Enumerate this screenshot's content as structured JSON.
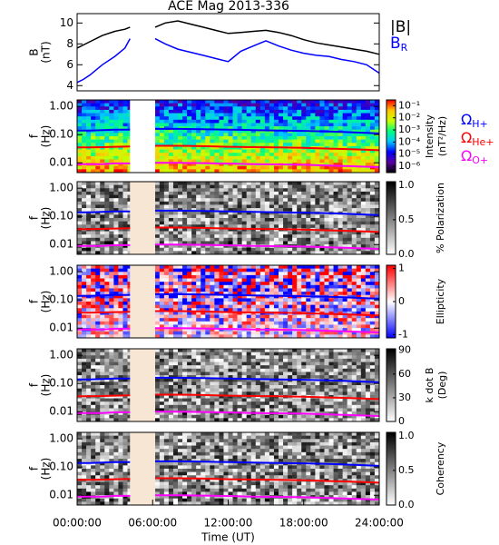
{
  "chart_data": [
    {
      "type": "line",
      "title": "ACE Mag 2013-336",
      "ylabel": [
        "B",
        "(nT)"
      ],
      "xlim": [
        0,
        24
      ],
      "ylim": [
        3.5,
        10.9
      ],
      "yticks": [
        4,
        6,
        8,
        10
      ],
      "x": [
        0,
        0.5,
        1,
        2,
        3,
        3.8,
        4.2,
        5,
        6.2,
        7,
        8,
        9,
        10,
        11,
        12,
        13,
        14,
        15,
        16,
        17,
        18,
        19,
        20,
        21,
        22,
        23,
        24
      ],
      "series": [
        {
          "name": "|B|",
          "color": "#000000",
          "values": [
            7.6,
            7.9,
            8.2,
            8.8,
            9.2,
            9.4,
            9.6,
            null,
            9.6,
            10.0,
            10.2,
            9.9,
            9.6,
            9.3,
            9.0,
            9.1,
            9.2,
            9.3,
            9.1,
            8.8,
            8.4,
            8.1,
            7.9,
            7.7,
            7.5,
            7.3,
            7.0
          ]
        },
        {
          "name": "B",
          "name_sub": "R",
          "color": "#0000ff",
          "values": [
            4.3,
            4.6,
            5.0,
            6.0,
            6.8,
            7.6,
            8.5,
            null,
            8.5,
            8.0,
            7.5,
            7.2,
            6.9,
            6.6,
            6.3,
            7.3,
            7.8,
            8.3,
            7.8,
            7.4,
            7.1,
            6.9,
            6.8,
            6.5,
            6.3,
            6.0,
            5.2
          ]
        }
      ]
    },
    {
      "type": "spectrogram",
      "ylabel": [
        "f",
        "(Hz)"
      ],
      "xlim": [
        0,
        24
      ],
      "ylim": [
        0.0045,
        1.7
      ],
      "yscale": "log",
      "yticks": [
        {
          "value": 1,
          "label": "1.00"
        },
        {
          "value": 0.1,
          "label": "0.10"
        },
        {
          "value": 0.01,
          "label": "0.01"
        }
      ],
      "gap": [
        4.2,
        6.2
      ],
      "gap_color": "#ffffff",
      "colorbar": {
        "label": [
          "Intensity",
          "(nT²/Hz)"
        ],
        "scale": "log",
        "lim": [
          3e-07,
          0.3
        ],
        "ticks": [
          {
            "value": 0.1,
            "label": "10⁻¹"
          },
          {
            "value": 0.01,
            "label": "10⁻²"
          },
          {
            "value": 0.001,
            "label": "10⁻³"
          },
          {
            "value": 0.0001,
            "label": "10⁻⁴"
          },
          {
            "value": 1e-05,
            "label": "10⁻⁵"
          },
          {
            "value": 1e-06,
            "label": "10⁻⁶"
          }
        ],
        "colors": [
          "#000000",
          "#5a00a0",
          "#0000ff",
          "#00c8ff",
          "#00ff80",
          "#c8ff00",
          "#ffc800",
          "#ff0000"
        ]
      },
      "x": [
        0,
        1,
        2,
        3,
        4.2,
        5,
        6.2,
        8,
        10,
        12,
        14,
        16,
        18,
        20,
        22,
        24
      ],
      "series": [
        {
          "name": "Ω",
          "name_sub": "H+",
          "color": "#0000ff",
          "values": [
            0.14,
            0.14,
            0.145,
            0.15,
            0.15,
            null,
            0.16,
            0.16,
            0.155,
            0.15,
            0.145,
            0.14,
            0.135,
            0.13,
            0.12,
            0.11
          ]
        },
        {
          "name": "Ω",
          "name_sub": "He+",
          "color": "#ff0000",
          "values": [
            0.035,
            0.035,
            0.036,
            0.037,
            0.038,
            null,
            0.04,
            0.04,
            0.039,
            0.037,
            0.036,
            0.035,
            0.034,
            0.032,
            0.03,
            0.028
          ]
        },
        {
          "name": "Ω",
          "name_sub": "O+",
          "color": "#ff00ff",
          "values": [
            0.009,
            0.009,
            0.009,
            0.0095,
            0.0095,
            null,
            0.01,
            0.01,
            0.0097,
            0.0094,
            0.009,
            0.0088,
            0.0085,
            0.008,
            0.0075,
            0.007
          ]
        }
      ]
    },
    {
      "type": "spectrogram",
      "ylabel": [
        "f",
        "(Hz)"
      ],
      "xlim": [
        0,
        24
      ],
      "ylim": [
        0.0045,
        1.7
      ],
      "yscale": "log",
      "yticks": [
        {
          "value": 1,
          "label": "1.00"
        },
        {
          "value": 0.1,
          "label": "0.10"
        },
        {
          "value": 0.01,
          "label": "0.01"
        }
      ],
      "gap": [
        4.2,
        6.2
      ],
      "gap_color": "#f8e6d4",
      "colorbar": {
        "label": [
          "% Polarization"
        ],
        "scale": "linear",
        "lim": [
          0,
          1.05
        ],
        "ticks": [
          {
            "value": 1,
            "label": "1.0"
          },
          0.5,
          {
            "value": 0,
            "label": "0.0"
          }
        ],
        "colors": [
          "#ffffff",
          "#000000"
        ]
      },
      "x": [
        0,
        1,
        2,
        3,
        4.2,
        5,
        6.2,
        8,
        10,
        12,
        14,
        16,
        18,
        20,
        22,
        24
      ],
      "series": [
        {
          "color": "#0000ff",
          "values": [
            0.14,
            0.14,
            0.145,
            0.15,
            0.15,
            null,
            0.16,
            0.16,
            0.155,
            0.15,
            0.145,
            0.14,
            0.135,
            0.13,
            0.12,
            0.11
          ]
        },
        {
          "color": "#ff0000",
          "values": [
            0.035,
            0.035,
            0.036,
            0.037,
            0.038,
            null,
            0.04,
            0.04,
            0.039,
            0.037,
            0.036,
            0.035,
            0.034,
            0.032,
            0.03,
            0.028
          ]
        },
        {
          "color": "#ff00ff",
          "values": [
            0.009,
            0.009,
            0.009,
            0.0095,
            0.0095,
            null,
            0.01,
            0.01,
            0.0097,
            0.0094,
            0.009,
            0.0088,
            0.0085,
            0.008,
            0.0075,
            0.007
          ]
        }
      ]
    },
    {
      "type": "spectrogram",
      "ylabel": [
        "f",
        "(Hz)"
      ],
      "xlim": [
        0,
        24
      ],
      "ylim": [
        0.0045,
        1.7
      ],
      "yscale": "log",
      "yticks": [
        {
          "value": 1,
          "label": "1.00"
        },
        {
          "value": 0.1,
          "label": "0.10"
        },
        {
          "value": 0.01,
          "label": "0.01"
        }
      ],
      "gap": [
        4.2,
        6.2
      ],
      "gap_color": "#f8e6d4",
      "colorbar": {
        "label": [
          "Ellipticity"
        ],
        "scale": "linear",
        "lim": [
          -1.1,
          1.1
        ],
        "ticks": [
          1,
          0,
          -1
        ],
        "colors": [
          "#0000ff",
          "#ffffff",
          "#ff0000"
        ]
      },
      "x": [
        0,
        1,
        2,
        3,
        4.2,
        5,
        6.2,
        8,
        10,
        12,
        14,
        16,
        18,
        20,
        22,
        24
      ],
      "series": [
        {
          "color": "#0000ff",
          "values": [
            0.14,
            0.14,
            0.145,
            0.15,
            0.15,
            null,
            0.16,
            0.16,
            0.155,
            0.15,
            0.145,
            0.14,
            0.135,
            0.13,
            0.12,
            0.11
          ]
        },
        {
          "color": "#ff0000",
          "values": [
            0.035,
            0.035,
            0.036,
            0.037,
            0.038,
            null,
            0.04,
            0.04,
            0.039,
            0.037,
            0.036,
            0.035,
            0.034,
            0.032,
            0.03,
            0.028
          ]
        },
        {
          "color": "#ff00ff",
          "values": [
            0.009,
            0.009,
            0.009,
            0.0095,
            0.0095,
            null,
            0.01,
            0.01,
            0.0097,
            0.0094,
            0.009,
            0.0088,
            0.0085,
            0.008,
            0.0075,
            0.007
          ]
        }
      ]
    },
    {
      "type": "spectrogram",
      "ylabel": [
        "f",
        "(Hz)"
      ],
      "xlim": [
        0,
        24
      ],
      "ylim": [
        0.0045,
        1.7
      ],
      "yscale": "log",
      "yticks": [
        {
          "value": 1,
          "label": "1.00"
        },
        {
          "value": 0.1,
          "label": "0.10"
        },
        {
          "value": 0.01,
          "label": "0.01"
        }
      ],
      "gap": [
        4.2,
        6.2
      ],
      "gap_color": "#f8e6d4",
      "colorbar": {
        "label": [
          "k dot B",
          "(Deg)"
        ],
        "scale": "linear",
        "lim": [
          0,
          92
        ],
        "ticks": [
          90,
          60,
          30,
          0
        ],
        "colors": [
          "#ffffff",
          "#000000"
        ]
      },
      "x": [
        0,
        1,
        2,
        3,
        4.2,
        5,
        6.2,
        8,
        10,
        12,
        14,
        16,
        18,
        20,
        22,
        24
      ],
      "series": [
        {
          "color": "#0000ff",
          "values": [
            0.14,
            0.14,
            0.145,
            0.15,
            0.15,
            null,
            0.16,
            0.16,
            0.155,
            0.15,
            0.145,
            0.14,
            0.135,
            0.13,
            0.12,
            0.11
          ]
        },
        {
          "color": "#ff0000",
          "values": [
            0.035,
            0.035,
            0.036,
            0.037,
            0.038,
            null,
            0.04,
            0.04,
            0.039,
            0.037,
            0.036,
            0.035,
            0.034,
            0.032,
            0.03,
            0.028
          ]
        },
        {
          "color": "#ff00ff",
          "values": [
            0.009,
            0.009,
            0.009,
            0.0095,
            0.0095,
            null,
            0.01,
            0.01,
            0.0097,
            0.0094,
            0.009,
            0.0088,
            0.0085,
            0.008,
            0.0075,
            0.007
          ]
        }
      ]
    },
    {
      "type": "spectrogram",
      "ylabel": [
        "f",
        "(Hz)"
      ],
      "xlabel": "Time (UT)",
      "xlim": [
        0,
        24
      ],
      "ylim": [
        0.0045,
        1.7
      ],
      "yscale": "log",
      "xticks": [
        {
          "value": 0,
          "label": "00:00:00"
        },
        {
          "value": 6,
          "label": "06:00:00"
        },
        {
          "value": 12,
          "label": "12:00:00"
        },
        {
          "value": 18,
          "label": "18:00:00"
        },
        {
          "value": 24,
          "label": "24:00:00"
        }
      ],
      "yticks": [
        {
          "value": 1,
          "label": "1.00"
        },
        {
          "value": 0.1,
          "label": "0.10"
        },
        {
          "value": 0.01,
          "label": "0.01"
        }
      ],
      "gap": [
        4.2,
        6.2
      ],
      "gap_color": "#f8e6d4",
      "colorbar": {
        "label": [
          "Coherency"
        ],
        "scale": "linear",
        "lim": [
          0,
          1.05
        ],
        "ticks": [
          {
            "value": 1,
            "label": "1.0"
          },
          0.5,
          {
            "value": 0,
            "label": "0.0"
          }
        ],
        "colors": [
          "#ffffff",
          "#000000"
        ]
      },
      "x": [
        0,
        1,
        2,
        3,
        4.2,
        5,
        6.2,
        8,
        10,
        12,
        14,
        16,
        18,
        20,
        22,
        24
      ],
      "series": [
        {
          "color": "#0000ff",
          "values": [
            0.14,
            0.14,
            0.145,
            0.15,
            0.15,
            null,
            0.16,
            0.16,
            0.155,
            0.15,
            0.145,
            0.14,
            0.135,
            0.13,
            0.12,
            0.11
          ]
        },
        {
          "color": "#ff0000",
          "values": [
            0.035,
            0.035,
            0.036,
            0.037,
            0.038,
            null,
            0.04,
            0.04,
            0.039,
            0.037,
            0.036,
            0.035,
            0.034,
            0.032,
            0.03,
            0.028
          ]
        },
        {
          "color": "#ff00ff",
          "values": [
            0.009,
            0.009,
            0.009,
            0.0095,
            0.0095,
            null,
            0.01,
            0.01,
            0.0097,
            0.0094,
            0.009,
            0.0088,
            0.0085,
            0.008,
            0.0075,
            0.007
          ]
        }
      ]
    }
  ]
}
